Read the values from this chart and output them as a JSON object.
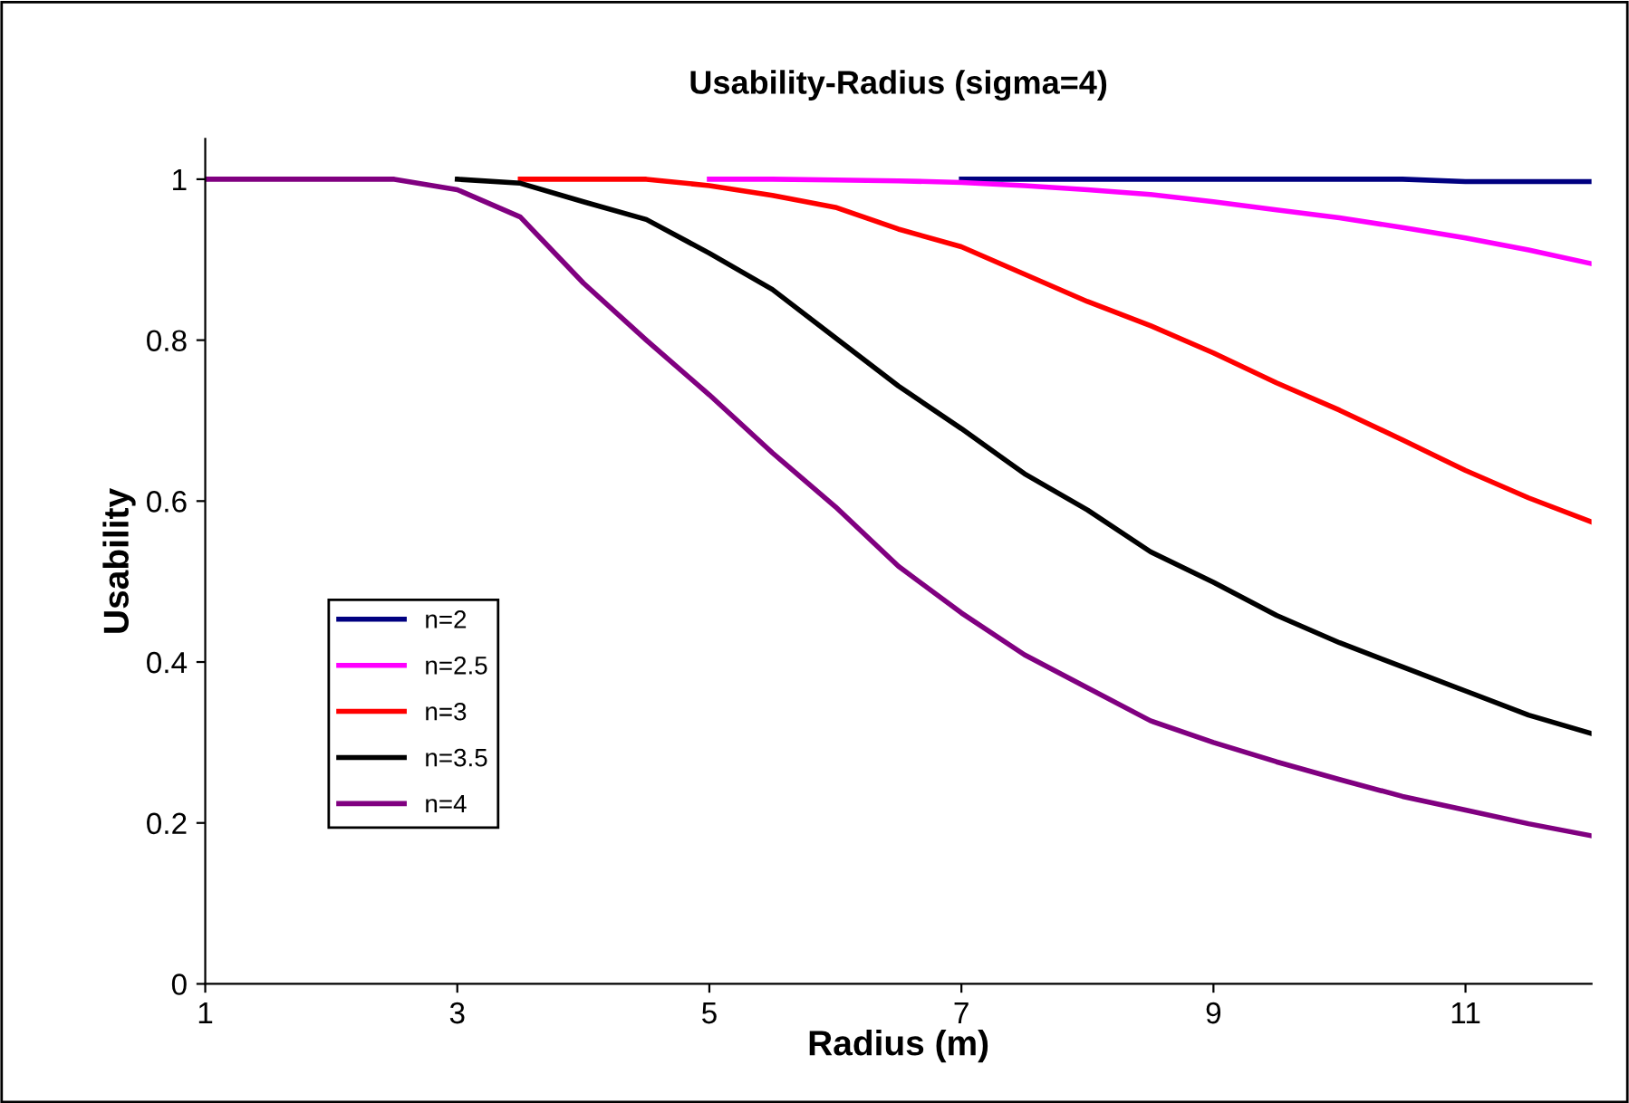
{
  "chart_data": {
    "type": "line",
    "title": "Usability-Radius (sigma=4)",
    "xlabel": "Radius (m)",
    "ylabel": "Usability",
    "xlim": [
      1,
      12
    ],
    "xticks": [
      1,
      3,
      5,
      7,
      9,
      11
    ],
    "ylim": [
      0,
      1.05
    ],
    "yticks": [
      0,
      0.2,
      0.4,
      0.6,
      0.8,
      1
    ],
    "grid": false,
    "legend": "bottom left",
    "marker": "none",
    "line_style": "solid",
    "x": [
      1,
      2,
      2.5,
      3,
      3.5,
      4,
      4.5,
      5,
      5.5,
      6,
      6.5,
      7,
      7.5,
      8,
      8.5,
      9,
      9.5,
      10,
      10.5,
      11,
      11.5,
      12
    ],
    "series": [
      {
        "name": "n=2",
        "color": "#000080",
        "values": [
          null,
          null,
          null,
          null,
          null,
          null,
          null,
          null,
          null,
          null,
          null,
          1,
          1,
          1,
          1,
          1,
          1,
          1,
          1,
          0.997,
          0.997,
          0.997
        ]
      },
      {
        "name": "n=2.5",
        "color": "#ff00ff",
        "values": [
          null,
          null,
          null,
          null,
          null,
          null,
          null,
          1,
          1,
          0.999,
          0.998,
          0.996,
          0.992,
          0.987,
          0.981,
          0.972,
          0.962,
          0.952,
          0.94,
          0.927,
          0.912,
          0.895
        ]
      },
      {
        "name": "n=3",
        "color": "#ff0000",
        "values": [
          null,
          null,
          null,
          null,
          1,
          1,
          1,
          0.992,
          0.98,
          0.965,
          0.938,
          0.916,
          0.882,
          0.848,
          0.818,
          0.784,
          0.747,
          0.713,
          0.676,
          0.638,
          0.604,
          0.574
        ]
      },
      {
        "name": "n=3.5",
        "color": "#000000",
        "values": [
          null,
          null,
          null,
          1,
          0.995,
          0.972,
          0.95,
          0.908,
          0.863,
          0.803,
          0.743,
          0.69,
          0.634,
          0.589,
          0.537,
          0.499,
          0.458,
          0.424,
          0.394,
          0.364,
          0.334,
          0.311
        ]
      },
      {
        "name": "n=4",
        "color": "#800080",
        "values": [
          1,
          1,
          1,
          0.987,
          0.953,
          0.871,
          0.8,
          0.732,
          0.66,
          0.593,
          0.519,
          0.461,
          0.409,
          0.368,
          0.327,
          0.3,
          0.276,
          0.254,
          0.233,
          0.216,
          0.199,
          0.184
        ]
      }
    ]
  }
}
